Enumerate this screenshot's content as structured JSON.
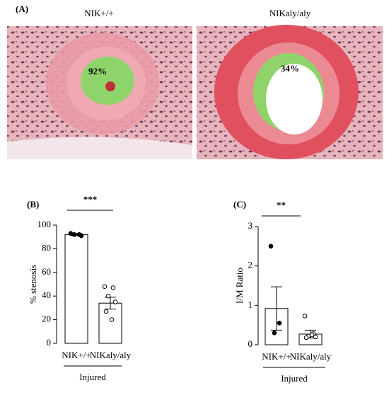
{
  "panel_a": {
    "label": "(A)",
    "images": [
      {
        "title": "NIK+/+",
        "overlay_label": "92%"
      },
      {
        "title": "NIKaly/aly",
        "overlay_label": "34%"
      }
    ]
  },
  "chart_data": [
    {
      "type": "bar",
      "panel_label": "(B)",
      "y_label": "% stenosis",
      "significance": "***",
      "group_label": "Injured",
      "categories": [
        "NIK+/+",
        "NIKaly/aly"
      ],
      "values": [
        92,
        34
      ],
      "errors": [
        1,
        5
      ],
      "points": [
        [
          93,
          92,
          92,
          91
        ],
        [
          48,
          47,
          40,
          35,
          27,
          20
        ]
      ],
      "point_fill": [
        "#000000",
        "#ffffff"
      ],
      "ylim": [
        0,
        100
      ],
      "yticks": [
        0,
        20,
        40,
        60,
        80,
        100
      ]
    },
    {
      "type": "bar",
      "panel_label": "(C)",
      "y_label": "I/M Ratio",
      "significance": "**",
      "group_label": "Injured",
      "categories": [
        "NIK+/+",
        "NIKaly/aly"
      ],
      "values": [
        0.92,
        0.27
      ],
      "errors": [
        0.55,
        0.1
      ],
      "points": [
        [
          2.5,
          0.55,
          0.3
        ],
        [
          0.73,
          0.28,
          0.22,
          0.2,
          0.18,
          0.25
        ]
      ],
      "point_fill": [
        "#000000",
        "#ffffff"
      ],
      "ylim": [
        0,
        3
      ],
      "yticks": [
        0,
        1,
        2,
        3
      ]
    }
  ]
}
